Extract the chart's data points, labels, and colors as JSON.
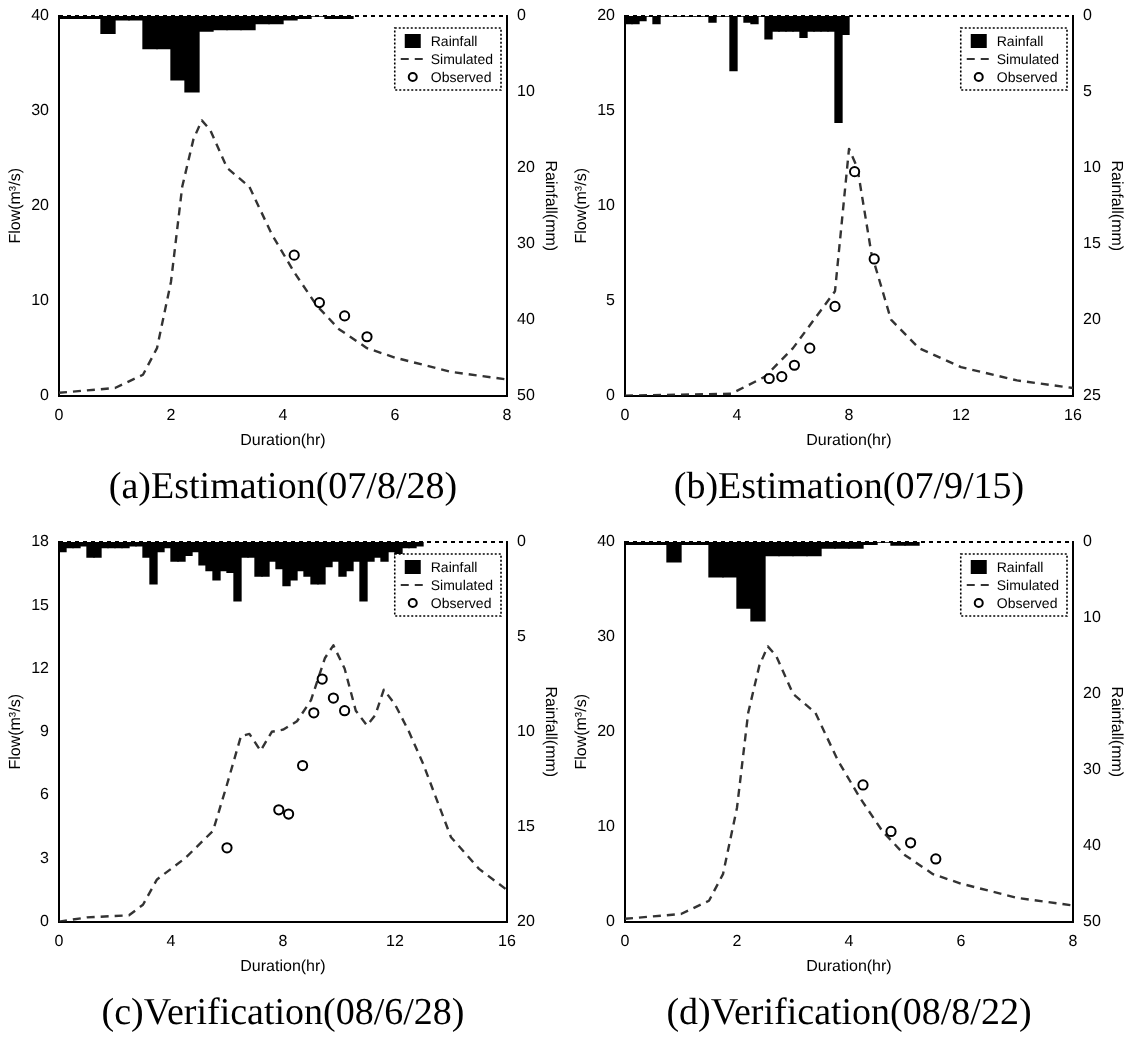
{
  "chart_data": [
    {
      "type": "line",
      "title": "(a)Estimation(07/8/28)",
      "xlabel": "Duration(hr)",
      "ylabel": "Flow(m³/s)",
      "y2label": "Rainfall(mm)",
      "xlim": [
        0,
        8
      ],
      "xticks": [
        0,
        2,
        4,
        6,
        8
      ],
      "ylim": [
        0,
        40
      ],
      "yticks": [
        0,
        10,
        20,
        30,
        40
      ],
      "y2lim": [
        50,
        0
      ],
      "y2ticks": [
        0,
        10,
        20,
        30,
        40,
        50
      ],
      "grid": false,
      "legend": "top right",
      "series": [
        {
          "name": "Rainfall",
          "type": "bar",
          "axis": "y2",
          "color": "#000000",
          "x": [
            0.125,
            0.375,
            0.625,
            0.875,
            1.125,
            1.375,
            1.625,
            1.875,
            2.125,
            2.375,
            2.625,
            2.875,
            3.125,
            3.375,
            3.625,
            3.875,
            4.125,
            4.375,
            4.625,
            4.875,
            5.125
          ],
          "values": [
            0.3,
            0.3,
            0.3,
            2.3,
            0.5,
            0.5,
            4.3,
            4.3,
            8.4,
            10,
            2,
            1.8,
            1.8,
            1.8,
            1,
            1,
            0.5,
            0.3,
            0,
            0.3,
            0.3
          ]
        },
        {
          "name": "Simulated",
          "line_style": "dashed",
          "marker": "none",
          "color": "#333333",
          "x": [
            0,
            1,
            1.5,
            1.75,
            2,
            2.2,
            2.4,
            2.55,
            2.7,
            3,
            3.4,
            3.8,
            4.2,
            4.6,
            5,
            5.5,
            6,
            7,
            8
          ],
          "values": [
            0.3,
            0.8,
            2.2,
            5,
            12,
            22,
            27,
            29,
            28,
            24,
            22,
            17,
            13,
            9.5,
            7,
            5,
            4,
            2.5,
            1.7
          ]
        },
        {
          "name": "Observed",
          "type": "scatter",
          "marker": "circle",
          "color": "#000000",
          "x": [
            4.2,
            4.65,
            5.1,
            5.5
          ],
          "values": [
            14.8,
            9.8,
            8.4,
            6.2
          ]
        }
      ]
    },
    {
      "type": "line",
      "title": "(b)Estimation(07/9/15)",
      "xlabel": "Duration(hr)",
      "ylabel": "Flow(m³/s)",
      "y2label": "Rainfall(mm)",
      "xlim": [
        0,
        16
      ],
      "xticks": [
        0,
        4,
        8,
        12,
        16
      ],
      "ylim": [
        0,
        20
      ],
      "yticks": [
        0,
        5,
        10,
        15,
        20
      ],
      "y2lim": [
        25,
        0
      ],
      "y2ticks": [
        0,
        5,
        10,
        15,
        20,
        25
      ],
      "grid": false,
      "legend": "top right",
      "series": [
        {
          "name": "Rainfall",
          "type": "bar",
          "axis": "y2",
          "color": "#000000",
          "x": [
            0.125,
            0.375,
            0.625,
            0.875,
            1.125,
            1.375,
            1.625,
            1.875,
            2.125,
            2.375,
            2.625,
            2.875,
            3.125,
            3.375,
            3.625,
            3.875,
            4.125,
            4.375,
            4.625,
            4.875,
            5.125,
            5.375,
            5.625,
            5.875,
            6.125,
            6.375,
            6.625,
            6.875,
            7.125,
            7.375,
            7.625,
            7.875
          ],
          "values": [
            0.5,
            0.5,
            0.3,
            0,
            0.5,
            0,
            0,
            0,
            0,
            0,
            0,
            0,
            0.4,
            0,
            0,
            3.6,
            0,
            0.4,
            0.5,
            0,
            1.5,
            1,
            1,
            1,
            1,
            1.4,
            1,
            1,
            1,
            1,
            7,
            1.2
          ]
        },
        {
          "name": "Simulated",
          "line_style": "dashed",
          "marker": "none",
          "color": "#333333",
          "x": [
            0,
            3.8,
            5,
            6,
            7,
            7.5,
            7.8,
            8,
            8.3,
            8.8,
            9.5,
            10.5,
            12,
            14,
            16
          ],
          "values": [
            0,
            0.1,
            1,
            2.5,
            4.5,
            5.5,
            10,
            13,
            12,
            7.5,
            4,
            2.5,
            1.5,
            0.8,
            0.4
          ]
        },
        {
          "name": "Observed",
          "type": "scatter",
          "marker": "circle",
          "color": "#000000",
          "x": [
            5.15,
            5.6,
            6.05,
            6.6,
            7.5,
            8.2,
            8.9
          ],
          "values": [
            0.9,
            1,
            1.6,
            2.5,
            4.7,
            11.8,
            7.2
          ]
        }
      ]
    },
    {
      "type": "line",
      "title": "(c)Verification(08/6/28)",
      "xlabel": "Duration(hr)",
      "ylabel": "Flow(m³/s)",
      "y2label": "Rainfall(mm)",
      "xlim": [
        0,
        16
      ],
      "xticks": [
        0,
        4,
        8,
        12,
        16
      ],
      "ylim": [
        0,
        18
      ],
      "yticks": [
        0,
        3,
        6,
        9,
        12,
        15,
        18
      ],
      "y2lim": [
        20,
        0
      ],
      "y2ticks": [
        0,
        5,
        10,
        15,
        20
      ],
      "grid": false,
      "legend": "top right",
      "series": [
        {
          "name": "Rainfall",
          "type": "bar",
          "axis": "y2",
          "color": "#000000",
          "x": [
            0.125,
            0.375,
            0.625,
            0.875,
            1.125,
            1.375,
            1.625,
            1.875,
            2.125,
            2.375,
            2.625,
            2.875,
            3.125,
            3.375,
            3.625,
            3.875,
            4.125,
            4.375,
            4.625,
            4.875,
            5.125,
            5.375,
            5.625,
            5.875,
            6.125,
            6.375,
            6.625,
            6.875,
            7.125,
            7.375,
            7.625,
            7.875,
            8.125,
            8.375,
            8.625,
            8.875,
            9.125,
            9.375,
            9.625,
            9.875,
            10.125,
            10.375,
            10.625,
            10.875,
            11.125,
            11.375,
            11.625,
            11.875,
            12.125,
            12.375,
            12.625,
            12.875
          ],
          "values": [
            0.5,
            0.3,
            0.3,
            0.2,
            0.8,
            0.8,
            0.3,
            0.3,
            0.3,
            0.3,
            0.2,
            0.2,
            0.8,
            2.2,
            0.5,
            0.3,
            1,
            1,
            0.7,
            0.5,
            1.2,
            1.5,
            2,
            1.5,
            1.6,
            3.1,
            0.8,
            0.8,
            1.8,
            1.8,
            1,
            1.4,
            2.3,
            2,
            1.5,
            1.8,
            2.2,
            2.2,
            1.3,
            1,
            1.8,
            1.5,
            1,
            3.1,
            1,
            0.8,
            1,
            0.5,
            0.8,
            0.3,
            0.3,
            0.2
          ]
        },
        {
          "name": "Simulated",
          "line_style": "dashed",
          "marker": "none",
          "color": "#333333",
          "x": [
            0,
            1,
            2.5,
            3,
            3.5,
            4.5,
            5.5,
            6,
            6.5,
            6.8,
            7.2,
            7.6,
            8,
            8.5,
            9,
            9.5,
            9.8,
            10.2,
            10.6,
            11,
            11.3,
            11.6,
            12,
            12.5,
            13,
            14,
            15,
            16
          ],
          "values": [
            0,
            0.2,
            0.3,
            0.8,
            2,
            3,
            4.3,
            6.5,
            8.8,
            8.9,
            8.1,
            9,
            9.1,
            9.5,
            10.5,
            12.5,
            13.1,
            12,
            10,
            9.3,
            9.8,
            11,
            10.3,
            9,
            7.5,
            4,
            2.5,
            1.5
          ]
        },
        {
          "name": "Observed",
          "type": "scatter",
          "marker": "circle",
          "color": "#000000",
          "x": [
            6,
            7.85,
            8.2,
            8.7,
            9.1,
            9.4,
            9.8,
            10.2
          ],
          "values": [
            3.5,
            5.3,
            5.1,
            7.4,
            9.9,
            11.5,
            10.6,
            10
          ]
        }
      ]
    },
    {
      "type": "line",
      "title": "(d)Verification(08/8/22)",
      "xlabel": "Duration(hr)",
      "ylabel": "Flow(m³/s)",
      "y2label": "Rainfall(mm)",
      "xlim": [
        0,
        8
      ],
      "xticks": [
        0,
        2,
        4,
        6,
        8
      ],
      "ylim": [
        0,
        40
      ],
      "yticks": [
        0,
        10,
        20,
        30,
        40
      ],
      "y2lim": [
        50,
        0
      ],
      "y2ticks": [
        0,
        10,
        20,
        30,
        40,
        50
      ],
      "grid": false,
      "legend": "top right",
      "series": [
        {
          "name": "Rainfall",
          "type": "bar",
          "axis": "y2",
          "color": "#000000",
          "x": [
            0.125,
            0.375,
            0.625,
            0.875,
            1.125,
            1.375,
            1.625,
            1.875,
            2.125,
            2.375,
            2.625,
            2.875,
            3.125,
            3.375,
            3.625,
            3.875,
            4.125,
            4.375,
            4.625,
            4.875,
            5.125
          ],
          "values": [
            0.3,
            0.3,
            0.3,
            2.6,
            0.3,
            0.3,
            4.6,
            4.6,
            8.7,
            10.4,
            1.8,
            1.8,
            1.8,
            1.8,
            0.8,
            0.8,
            0.8,
            0.3,
            0,
            0.4,
            0.4
          ]
        },
        {
          "name": "Simulated",
          "line_style": "dashed",
          "marker": "none",
          "color": "#333333",
          "x": [
            0,
            1,
            1.5,
            1.75,
            2,
            2.2,
            2.4,
            2.55,
            2.7,
            3,
            3.4,
            3.8,
            4.2,
            4.6,
            5,
            5.5,
            6,
            7,
            8
          ],
          "values": [
            0.3,
            0.8,
            2.2,
            5,
            12,
            22,
            27,
            29,
            28,
            24,
            22,
            17,
            13,
            9.5,
            7,
            5,
            4,
            2.5,
            1.7
          ]
        },
        {
          "name": "Observed",
          "type": "scatter",
          "marker": "circle",
          "color": "#000000",
          "x": [
            4.25,
            4.75,
            5.1,
            5.55
          ],
          "values": [
            14.4,
            9.5,
            8.3,
            6.6
          ]
        }
      ]
    }
  ]
}
